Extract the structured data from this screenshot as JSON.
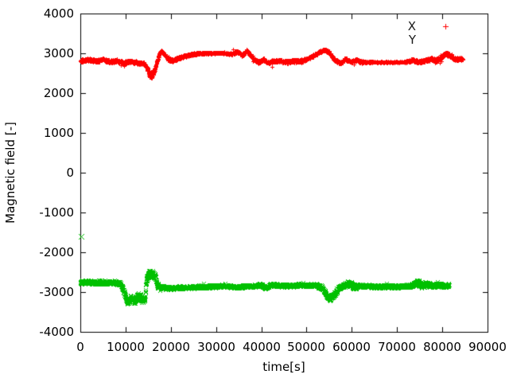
{
  "figure": {
    "background": "#ffffff",
    "text_color": "#000000",
    "border_color": "#000000"
  },
  "legend": {
    "position": "top-right-inside",
    "items": [
      {
        "label": "X",
        "marker": "plus-icon",
        "color": "#ff0000",
        "sample_visible": true
      },
      {
        "label": "Y",
        "marker": "cross-icon",
        "color": "#00c000",
        "sample_visible": false
      }
    ]
  },
  "chart_data": {
    "type": "scatter",
    "title": "",
    "xlabel": "time[s]",
    "ylabel": "Magnetic field [-]",
    "xlim": [
      0,
      90000
    ],
    "ylim": [
      -4000,
      4000
    ],
    "xticks": [
      0,
      10000,
      20000,
      30000,
      40000,
      50000,
      60000,
      70000,
      80000,
      90000
    ],
    "yticks": [
      -4000,
      -3000,
      -2000,
      -1000,
      0,
      1000,
      2000,
      3000,
      4000
    ],
    "grid": false,
    "tick_style": "inside-mirrored",
    "series": [
      {
        "name": "X",
        "marker": "plus",
        "color": "#ff0000",
        "sample_step_s": 20,
        "trend": [
          [
            0,
            2820
          ],
          [
            2000,
            2840
          ],
          [
            3500,
            2800
          ],
          [
            5000,
            2850
          ],
          [
            6500,
            2790
          ],
          [
            8000,
            2810
          ],
          [
            9500,
            2770
          ],
          [
            11000,
            2800
          ],
          [
            12500,
            2770
          ],
          [
            14000,
            2750
          ],
          [
            14800,
            2620
          ],
          [
            15300,
            2480
          ],
          [
            15800,
            2440
          ],
          [
            16300,
            2560
          ],
          [
            16900,
            2780
          ],
          [
            17500,
            3000
          ],
          [
            17900,
            3060
          ],
          [
            18700,
            2960
          ],
          [
            19500,
            2840
          ],
          [
            20300,
            2820
          ],
          [
            21500,
            2880
          ],
          [
            23000,
            2930
          ],
          [
            24500,
            2970
          ],
          [
            26000,
            3000
          ],
          [
            28000,
            3005
          ],
          [
            31000,
            3005
          ],
          [
            33500,
            2990
          ],
          [
            34800,
            3040
          ],
          [
            35800,
            2950
          ],
          [
            36800,
            3070
          ],
          [
            37600,
            2960
          ],
          [
            38500,
            2830
          ],
          [
            39500,
            2780
          ],
          [
            40500,
            2850
          ],
          [
            41500,
            2760
          ],
          [
            42500,
            2800
          ],
          [
            44000,
            2820
          ],
          [
            45500,
            2780
          ],
          [
            47000,
            2810
          ],
          [
            48500,
            2800
          ],
          [
            50000,
            2850
          ],
          [
            51500,
            2940
          ],
          [
            53000,
            3040
          ],
          [
            54000,
            3090
          ],
          [
            55000,
            3020
          ],
          [
            56300,
            2820
          ],
          [
            57500,
            2760
          ],
          [
            58500,
            2860
          ],
          [
            59800,
            2790
          ],
          [
            61000,
            2840
          ],
          [
            62300,
            2780
          ],
          [
            63500,
            2780
          ],
          [
            71500,
            2780
          ],
          [
            72500,
            2800
          ],
          [
            73500,
            2840
          ],
          [
            74500,
            2790
          ],
          [
            76000,
            2810
          ],
          [
            77500,
            2860
          ],
          [
            78500,
            2810
          ],
          [
            79800,
            2910
          ],
          [
            80800,
            3000
          ],
          [
            81500,
            2960
          ],
          [
            82500,
            2870
          ],
          [
            83500,
            2850
          ],
          [
            84500,
            2860
          ]
        ],
        "noise": [
          [
            0,
            45
          ],
          [
            14000,
            45
          ],
          [
            14800,
            70
          ],
          [
            15200,
            90
          ],
          [
            16400,
            90
          ],
          [
            17000,
            50
          ],
          [
            18000,
            45
          ],
          [
            25000,
            40
          ],
          [
            26500,
            22
          ],
          [
            33000,
            22
          ],
          [
            34000,
            40
          ],
          [
            38000,
            45
          ],
          [
            50000,
            45
          ],
          [
            52000,
            40
          ],
          [
            55500,
            40
          ],
          [
            56500,
            45
          ],
          [
            62500,
            45
          ],
          [
            63500,
            16
          ],
          [
            71500,
            16
          ],
          [
            72500,
            40
          ],
          [
            77500,
            50
          ],
          [
            79000,
            60
          ],
          [
            82000,
            55
          ],
          [
            84500,
            50
          ]
        ],
        "outliers": []
      },
      {
        "name": "Y",
        "marker": "cross",
        "color": "#00c000",
        "sample_step_s": 20,
        "trend": [
          [
            0,
            -2760
          ],
          [
            1500,
            -2740
          ],
          [
            3000,
            -2770
          ],
          [
            4500,
            -2750
          ],
          [
            6000,
            -2760
          ],
          [
            7500,
            -2750
          ],
          [
            8800,
            -2780
          ],
          [
            9500,
            -2950
          ],
          [
            10400,
            -3250
          ],
          [
            11200,
            -3150
          ],
          [
            12000,
            -3230
          ],
          [
            12800,
            -3080
          ],
          [
            13300,
            -3150
          ],
          [
            13900,
            -3220
          ],
          [
            14300,
            -3120
          ],
          [
            14600,
            -2700
          ],
          [
            15000,
            -2550
          ],
          [
            15800,
            -2540
          ],
          [
            16600,
            -2600
          ],
          [
            17000,
            -2840
          ],
          [
            18000,
            -2880
          ],
          [
            20000,
            -2900
          ],
          [
            23000,
            -2880
          ],
          [
            26000,
            -2870
          ],
          [
            29000,
            -2860
          ],
          [
            32000,
            -2850
          ],
          [
            35000,
            -2870
          ],
          [
            38000,
            -2840
          ],
          [
            40000,
            -2820
          ],
          [
            41000,
            -2900
          ],
          [
            42000,
            -2820
          ],
          [
            44000,
            -2830
          ],
          [
            46000,
            -2840
          ],
          [
            48000,
            -2820
          ],
          [
            50000,
            -2830
          ],
          [
            52000,
            -2820
          ],
          [
            53500,
            -2900
          ],
          [
            54500,
            -3100
          ],
          [
            55200,
            -3160
          ],
          [
            56000,
            -3080
          ],
          [
            57000,
            -2900
          ],
          [
            58000,
            -2830
          ],
          [
            59500,
            -2780
          ],
          [
            60500,
            -2850
          ],
          [
            62000,
            -2840
          ],
          [
            64000,
            -2850
          ],
          [
            66000,
            -2860
          ],
          [
            68000,
            -2850
          ],
          [
            70000,
            -2860
          ],
          [
            72000,
            -2850
          ],
          [
            73500,
            -2820
          ],
          [
            74500,
            -2760
          ],
          [
            75500,
            -2830
          ],
          [
            76500,
            -2790
          ],
          [
            78000,
            -2840
          ],
          [
            79500,
            -2820
          ],
          [
            80500,
            -2840
          ],
          [
            81500,
            -2830
          ]
        ],
        "noise": [
          [
            0,
            55
          ],
          [
            8800,
            55
          ],
          [
            9600,
            85
          ],
          [
            10500,
            95
          ],
          [
            14200,
            95
          ],
          [
            14700,
            110
          ],
          [
            16800,
            110
          ],
          [
            17400,
            60
          ],
          [
            20000,
            45
          ],
          [
            50000,
            45
          ],
          [
            53500,
            60
          ],
          [
            54500,
            80
          ],
          [
            56000,
            70
          ],
          [
            57500,
            55
          ],
          [
            59000,
            90
          ],
          [
            60500,
            90
          ],
          [
            61500,
            50
          ],
          [
            73500,
            50
          ],
          [
            74200,
            90
          ],
          [
            76500,
            90
          ],
          [
            77500,
            60
          ],
          [
            81500,
            60
          ]
        ],
        "outliers": [
          [
            100,
            -1600
          ]
        ]
      }
    ]
  }
}
